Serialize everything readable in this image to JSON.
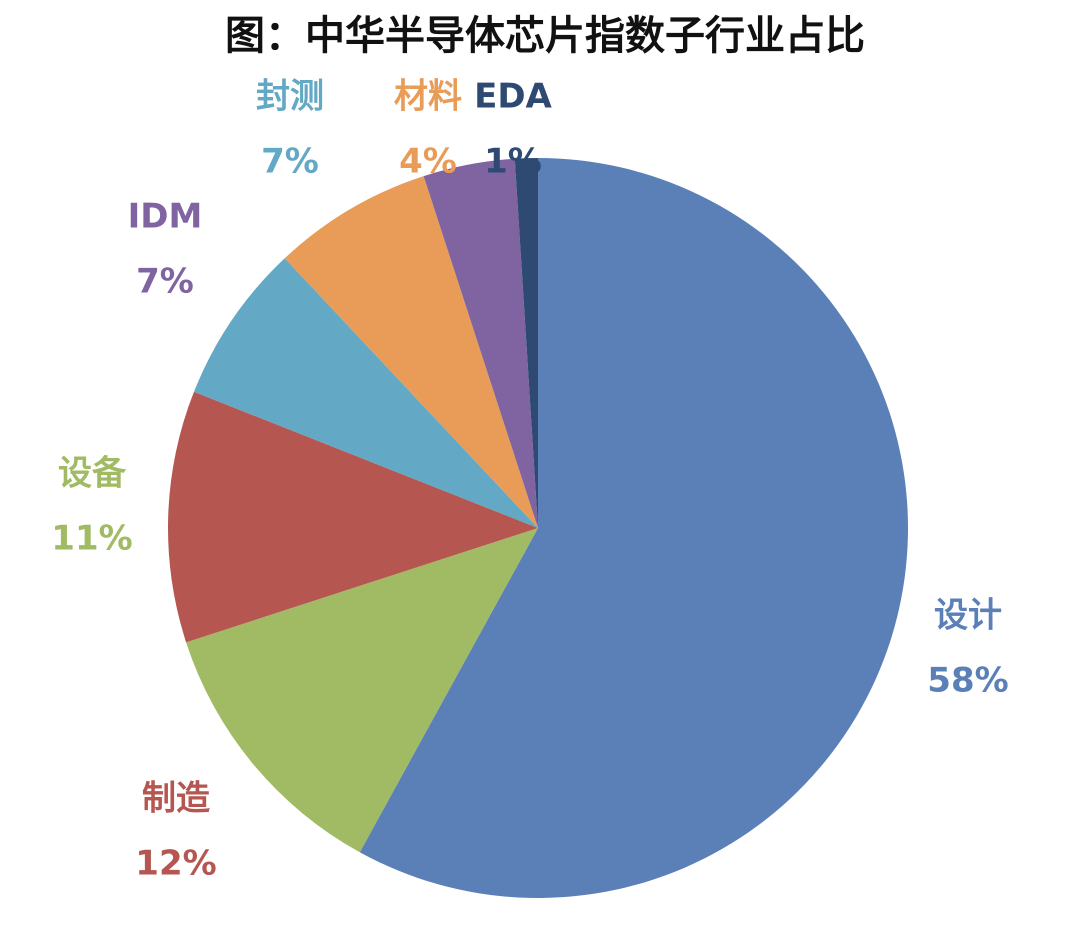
{
  "chart_data": {
    "type": "pie",
    "title": "图：中华半导体芯片指数子行业占比",
    "categories": [
      "设计",
      "制造",
      "设备",
      "IDM",
      "封测",
      "材料",
      "EDA"
    ],
    "values": [
      58,
      12,
      11,
      7,
      7,
      4,
      1
    ],
    "value_labels": [
      "58%",
      "12%",
      "11%",
      "7%",
      "7%",
      "4%",
      "1%"
    ],
    "colors": [
      "#5b80b8",
      "#a1bb64",
      "#b55651",
      "#63a8c4",
      "#e99c57",
      "#7f64a1",
      "#2e4a72"
    ],
    "label_colors": [
      "#5b80b8",
      "#b55651",
      "#a1bb64",
      "#7f64a1",
      "#63a8c4",
      "#e99c57",
      "#2e4a72"
    ]
  }
}
